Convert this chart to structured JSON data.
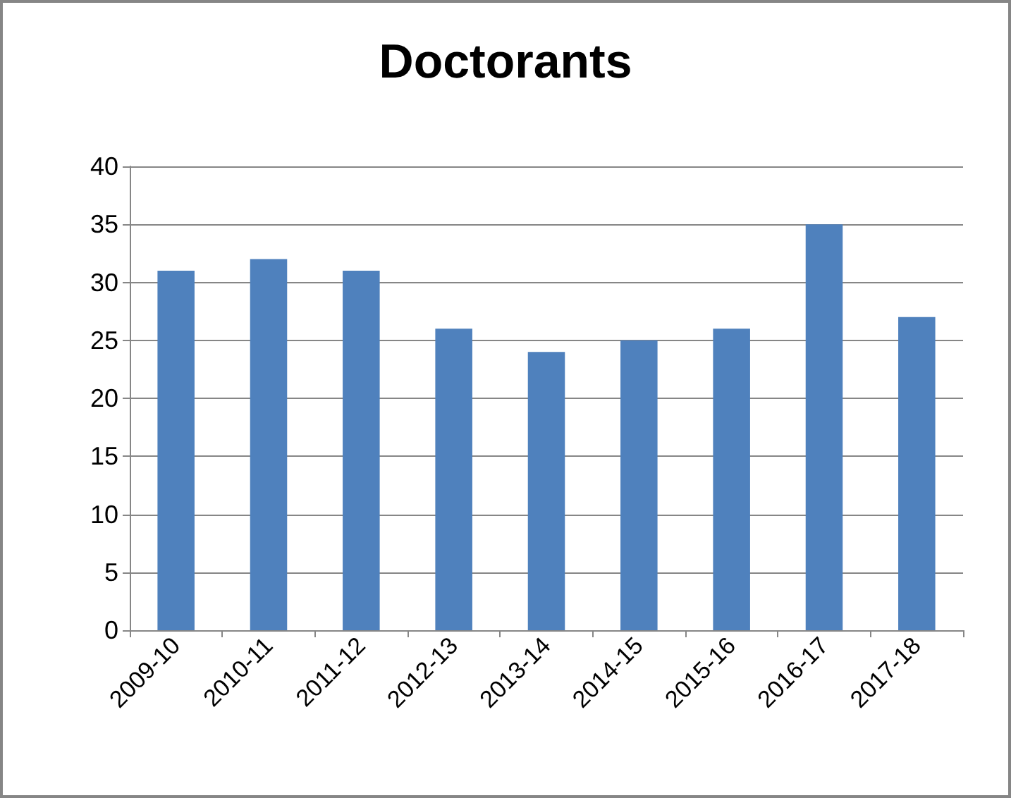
{
  "chart_data": {
    "type": "bar",
    "title": "Doctorants",
    "categories": [
      "2009-10",
      "2010-11",
      "2011-12",
      "2012-13",
      "2013-14",
      "2014-15",
      "2015-16",
      "2016-17",
      "2017-18"
    ],
    "values": [
      31,
      32,
      31,
      26,
      24,
      25,
      26,
      35,
      27
    ],
    "color": "#4f81bd",
    "ylim": [
      0,
      40
    ],
    "yticks": [
      0,
      5,
      10,
      15,
      20,
      25,
      30,
      35,
      40
    ],
    "grid": "y"
  }
}
